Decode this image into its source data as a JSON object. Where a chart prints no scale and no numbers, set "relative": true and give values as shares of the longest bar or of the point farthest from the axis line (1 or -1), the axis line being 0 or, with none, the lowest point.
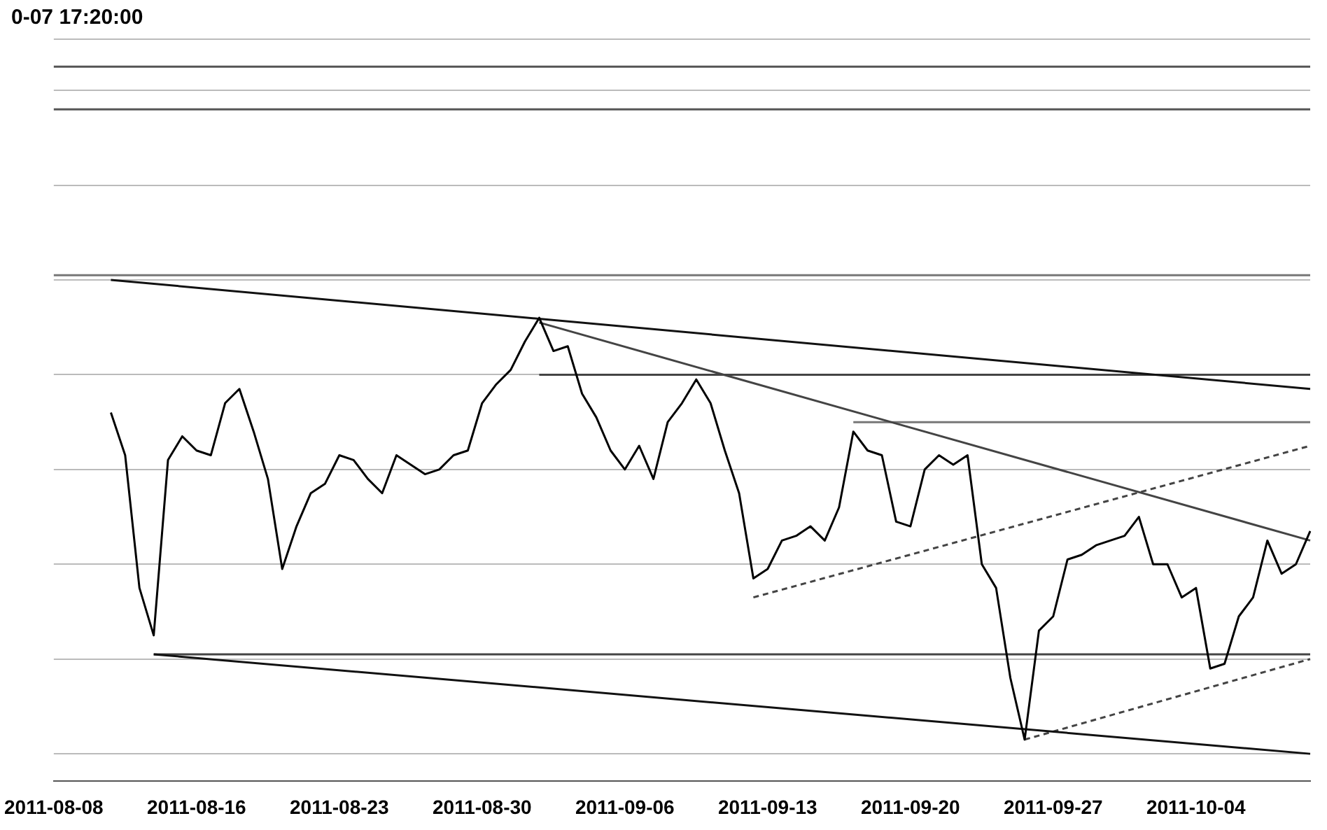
{
  "chart_data": {
    "type": "line",
    "title": "0-07 17:20:00",
    "relative": true,
    "legend": false,
    "grid": "y",
    "tick_labels": "x",
    "marker": "none",
    "categories": [
      "2011-08-08",
      null,
      null,
      null,
      null,
      null,
      null,
      null,
      null,
      null,
      "2011-08-16",
      null,
      null,
      null,
      null,
      null,
      null,
      null,
      null,
      null,
      "2011-08-23",
      null,
      null,
      null,
      null,
      null,
      null,
      null,
      null,
      null,
      "2011-08-30",
      null,
      null,
      null,
      null,
      null,
      null,
      null,
      null,
      null,
      "2011-09-06",
      null,
      null,
      null,
      null,
      null,
      null,
      null,
      null,
      null,
      "2011-09-13",
      null,
      null,
      null,
      null,
      null,
      null,
      null,
      null,
      null,
      "2011-09-20",
      null,
      null,
      null,
      null,
      null,
      null,
      null,
      null,
      null,
      "2011-09-27",
      null,
      null,
      null,
      null,
      null,
      null,
      null,
      null,
      null,
      "2011-10-04",
      null,
      null,
      null,
      null,
      null,
      null,
      null,
      null
    ],
    "series": [
      {
        "color": "#000000",
        "values": [
          null,
          null,
          null,
          null,
          0.72,
          0.63,
          0.35,
          0.25,
          0.62,
          0.67,
          0.64,
          0.63,
          0.74,
          0.77,
          0.68,
          0.58,
          0.39,
          0.48,
          0.55,
          0.57,
          0.63,
          0.62,
          0.58,
          0.55,
          0.63,
          0.61,
          0.59,
          0.6,
          0.63,
          0.64,
          0.74,
          0.78,
          0.81,
          0.87,
          0.92,
          0.85,
          0.86,
          0.76,
          0.71,
          0.64,
          0.6,
          0.65,
          0.58,
          0.7,
          0.74,
          0.79,
          0.74,
          0.64,
          0.55,
          0.37,
          0.39,
          0.45,
          0.46,
          0.48,
          0.45,
          0.52,
          0.68,
          0.64,
          0.63,
          0.49,
          0.48,
          0.6,
          0.63,
          0.61,
          0.63,
          0.4,
          0.35,
          0.16,
          0.03,
          0.26,
          0.29,
          0.41,
          0.42,
          0.44,
          0.45,
          0.46,
          0.5,
          0.4,
          0.4,
          0.33,
          0.35,
          0.18,
          0.19,
          0.29,
          0.33,
          0.45,
          0.38,
          0.4,
          0.47
        ]
      },
      {
        "type": "line",
        "color": "#111111",
        "values": [
          null,
          null,
          null,
          null,
          1.0,
          null,
          null,
          null,
          null,
          null,
          null,
          null,
          null,
          null,
          null,
          null,
          null,
          null,
          null,
          null,
          null,
          null,
          null,
          null,
          null,
          null,
          null,
          null,
          null,
          null,
          null,
          null,
          null,
          null,
          null,
          null,
          null,
          null,
          null,
          null,
          null,
          null,
          null,
          null,
          null,
          null,
          null,
          null,
          null,
          null,
          null,
          null,
          null,
          null,
          null,
          null,
          null,
          null,
          null,
          null,
          null,
          null,
          null,
          null,
          null,
          null,
          null,
          null,
          null,
          null,
          null,
          null,
          null,
          null,
          null,
          null,
          null,
          null,
          null,
          null,
          null,
          null,
          null,
          null,
          null,
          null,
          null,
          null,
          0.77
        ]
      },
      {
        "type": "line",
        "color": "#111111",
        "values": [
          null,
          null,
          null,
          null,
          null,
          null,
          null,
          0.21,
          null,
          null,
          null,
          null,
          null,
          null,
          null,
          null,
          null,
          null,
          null,
          null,
          null,
          null,
          null,
          null,
          null,
          null,
          null,
          null,
          null,
          null,
          null,
          null,
          null,
          null,
          null,
          null,
          null,
          null,
          null,
          null,
          null,
          null,
          null,
          null,
          null,
          null,
          null,
          null,
          null,
          null,
          null,
          null,
          null,
          null,
          null,
          null,
          null,
          null,
          null,
          null,
          null,
          null,
          null,
          null,
          null,
          null,
          null,
          null,
          null,
          null,
          null,
          null,
          null,
          null,
          null,
          null,
          null,
          null,
          null,
          null,
          null,
          null,
          null,
          null,
          null,
          null,
          null,
          null,
          0.0
        ]
      },
      {
        "type": "line",
        "color": "#444444",
        "values": [
          null,
          null,
          null,
          null,
          null,
          null,
          null,
          null,
          null,
          null,
          null,
          null,
          null,
          null,
          null,
          null,
          null,
          null,
          null,
          null,
          null,
          null,
          null,
          null,
          null,
          null,
          null,
          null,
          null,
          null,
          null,
          null,
          null,
          null,
          0.91,
          null,
          null,
          null,
          null,
          null,
          null,
          null,
          null,
          null,
          null,
          null,
          null,
          null,
          null,
          null,
          null,
          null,
          null,
          null,
          null,
          null,
          null,
          null,
          null,
          null,
          null,
          null,
          null,
          null,
          null,
          null,
          null,
          null,
          null,
          null,
          null,
          null,
          null,
          null,
          null,
          null,
          null,
          null,
          null,
          null,
          null,
          null,
          null,
          null,
          null,
          null,
          null,
          null,
          0.45
        ]
      },
      {
        "type": "line",
        "color": "#444444",
        "line_style": "dashed",
        "values": [
          null,
          null,
          null,
          null,
          null,
          null,
          null,
          null,
          null,
          null,
          null,
          null,
          null,
          null,
          null,
          null,
          null,
          null,
          null,
          null,
          null,
          null,
          null,
          null,
          null,
          null,
          null,
          null,
          null,
          null,
          null,
          null,
          null,
          null,
          null,
          null,
          null,
          null,
          null,
          null,
          null,
          null,
          null,
          null,
          null,
          null,
          null,
          null,
          null,
          0.33,
          null,
          null,
          null,
          null,
          null,
          null,
          null,
          null,
          null,
          null,
          null,
          null,
          null,
          null,
          null,
          null,
          null,
          null,
          null,
          null,
          null,
          null,
          null,
          null,
          null,
          null,
          null,
          null,
          null,
          null,
          null,
          null,
          null,
          null,
          null,
          null,
          null,
          null,
          0.65
        ]
      },
      {
        "type": "line",
        "color": "#444444",
        "line_style": "dashed",
        "values": [
          null,
          null,
          null,
          null,
          null,
          null,
          null,
          null,
          null,
          null,
          null,
          null,
          null,
          null,
          null,
          null,
          null,
          null,
          null,
          null,
          null,
          null,
          null,
          null,
          null,
          null,
          null,
          null,
          null,
          null,
          null,
          null,
          null,
          null,
          null,
          null,
          null,
          null,
          null,
          null,
          null,
          null,
          null,
          null,
          null,
          null,
          null,
          null,
          null,
          null,
          null,
          null,
          null,
          null,
          null,
          null,
          null,
          null,
          null,
          null,
          null,
          null,
          null,
          null,
          null,
          null,
          null,
          null,
          0.03,
          null,
          null,
          null,
          null,
          null,
          null,
          null,
          null,
          null,
          null,
          null,
          null,
          null,
          null,
          null,
          null,
          null,
          null,
          null,
          0.2
        ]
      },
      {
        "type": "line",
        "color": "#444444",
        "values": [
          null,
          null,
          null,
          null,
          null,
          null,
          null,
          null,
          null,
          null,
          null,
          null,
          null,
          null,
          null,
          null,
          null,
          null,
          null,
          null,
          null,
          null,
          null,
          null,
          null,
          null,
          null,
          null,
          null,
          null,
          null,
          null,
          null,
          null,
          0.8,
          null,
          null,
          null,
          null,
          null,
          null,
          null,
          null,
          null,
          null,
          null,
          null,
          null,
          null,
          null,
          null,
          null,
          null,
          null,
          null,
          null,
          null,
          null,
          null,
          null,
          null,
          null,
          null,
          null,
          null,
          null,
          null,
          null,
          null,
          null,
          null,
          null,
          null,
          null,
          null,
          null,
          null,
          null,
          null,
          null,
          null,
          null,
          null,
          null,
          null,
          null,
          null,
          null,
          0.8
        ]
      },
      {
        "type": "line",
        "color": "#777777",
        "values": [
          null,
          null,
          null,
          null,
          null,
          null,
          null,
          null,
          null,
          null,
          null,
          null,
          null,
          null,
          null,
          null,
          null,
          null,
          null,
          null,
          null,
          null,
          null,
          null,
          null,
          null,
          null,
          null,
          null,
          null,
          null,
          null,
          null,
          null,
          null,
          null,
          null,
          null,
          null,
          null,
          null,
          null,
          null,
          null,
          null,
          null,
          null,
          null,
          null,
          null,
          null,
          null,
          null,
          null,
          null,
          null,
          0.7,
          null,
          null,
          null,
          null,
          null,
          null,
          null,
          null,
          null,
          null,
          null,
          null,
          null,
          null,
          null,
          null,
          null,
          null,
          null,
          null,
          null,
          null,
          null,
          null,
          null,
          null,
          null,
          null,
          null,
          null,
          null,
          0.7
        ]
      },
      {
        "type": "line",
        "color": "#444444",
        "values": [
          null,
          null,
          null,
          null,
          null,
          null,
          null,
          0.21,
          null,
          null,
          null,
          null,
          null,
          null,
          null,
          null,
          null,
          null,
          null,
          null,
          null,
          null,
          null,
          null,
          null,
          null,
          null,
          null,
          null,
          null,
          null,
          null,
          null,
          null,
          null,
          null,
          null,
          null,
          null,
          null,
          null,
          null,
          null,
          null,
          null,
          null,
          null,
          null,
          null,
          null,
          null,
          null,
          null,
          null,
          null,
          null,
          null,
          null,
          null,
          null,
          null,
          null,
          null,
          null,
          null,
          null,
          null,
          null,
          null,
          null,
          null,
          null,
          null,
          null,
          null,
          null,
          null,
          null,
          null,
          null,
          null,
          null,
          null,
          null,
          null,
          null,
          null,
          null,
          0.21
        ]
      }
    ],
    "ref_lines": [
      {
        "axis": "y",
        "value": 1.45,
        "color": "#555555"
      },
      {
        "axis": "y",
        "value": 1.36,
        "color": "#555555"
      },
      {
        "axis": "y",
        "value": 1.01,
        "color": "#777777"
      }
    ]
  }
}
